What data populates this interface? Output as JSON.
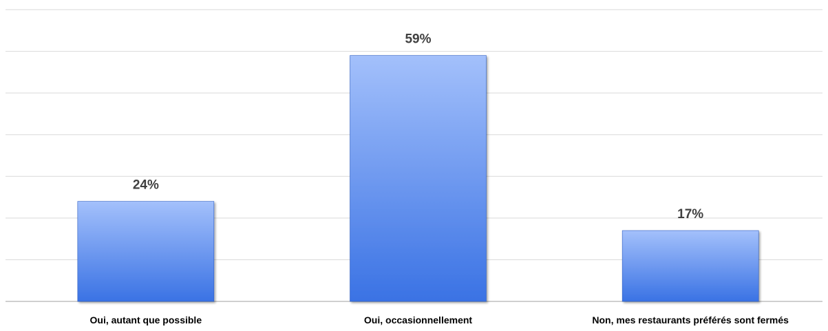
{
  "chart_data": {
    "type": "bar",
    "title": "",
    "xlabel": "",
    "ylabel": "",
    "categories": [
      "Oui, autant que possible",
      "Oui, occasionnellement",
      "Non, mes restaurants préférés sont  fermés"
    ],
    "values": [
      24,
      59,
      17
    ],
    "data_labels": [
      "24%",
      "59%",
      "17%"
    ],
    "ylim": [
      0,
      70
    ],
    "grid": true,
    "legend": "none",
    "colors": {
      "bar_top": "#a3c0fb",
      "bar_bottom": "#3a72e4",
      "gridline": "#d9d9d9",
      "label": "#404040"
    }
  }
}
